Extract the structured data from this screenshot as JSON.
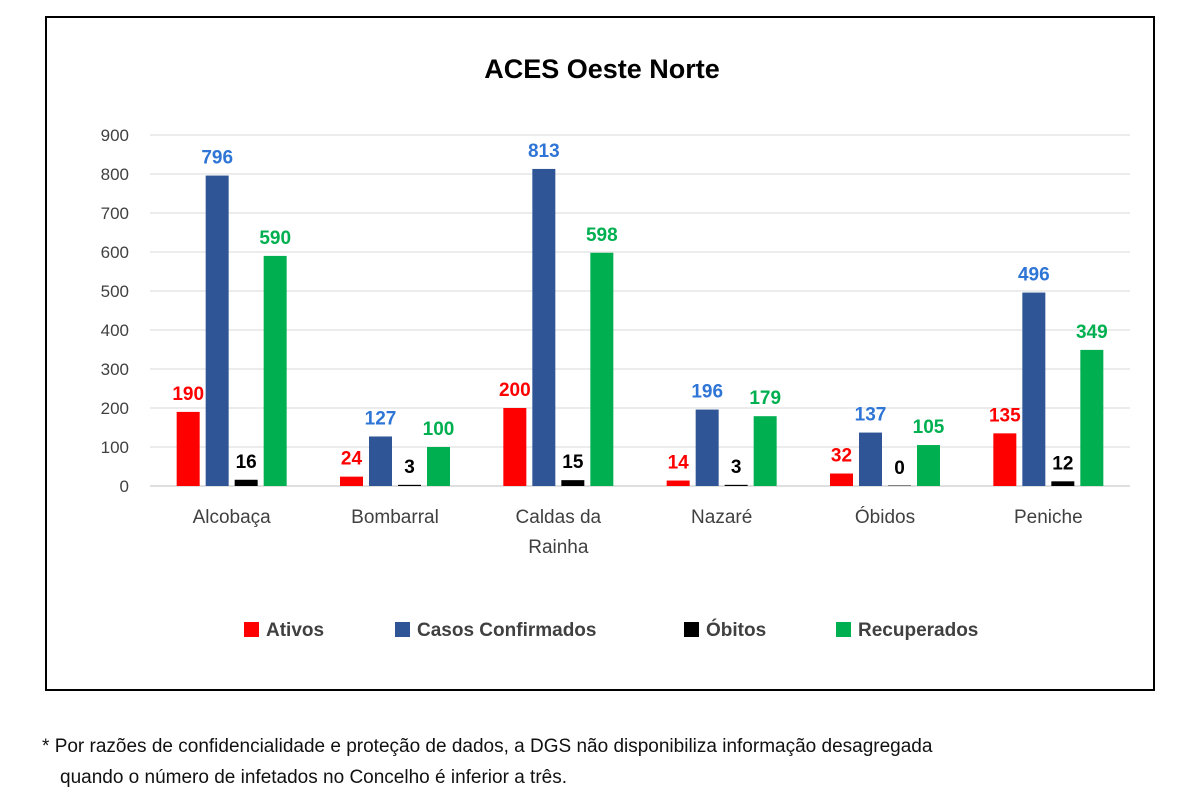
{
  "chart_data": {
    "type": "bar",
    "title": "ACES Oeste Norte",
    "categories": [
      "Alcobaça",
      "Bombarral",
      "Caldas da Rainha",
      "Nazaré",
      "Óbidos",
      "Peniche"
    ],
    "category_lines": [
      [
        "Alcobaça"
      ],
      [
        "Bombarral"
      ],
      [
        "Caldas da",
        "Rainha"
      ],
      [
        "Nazaré"
      ],
      [
        "Óbidos"
      ],
      [
        "Peniche"
      ]
    ],
    "series": [
      {
        "name": "Ativos",
        "color": "#ff0000",
        "label_color": "#ff0000",
        "values": [
          190,
          24,
          200,
          14,
          32,
          135
        ]
      },
      {
        "name": "Casos Confirmados",
        "color": "#2f5597",
        "label_color": "#2e75d6",
        "values": [
          796,
          127,
          813,
          196,
          137,
          496
        ]
      },
      {
        "name": "Óbitos",
        "color": "#000000",
        "label_color": "#000000",
        "values": [
          16,
          3,
          15,
          3,
          0,
          12
        ]
      },
      {
        "name": "Recuperados",
        "color": "#00b050",
        "label_color": "#00b050",
        "values": [
          590,
          100,
          598,
          179,
          105,
          349
        ]
      }
    ],
    "y_ticks": [
      0,
      100,
      200,
      300,
      400,
      500,
      600,
      700,
      800,
      900
    ],
    "ylim": [
      0,
      900
    ],
    "grid": true,
    "legend_position": "bottom"
  },
  "footnote": {
    "marker": "*",
    "line1": "Por razões de confidencialidade e proteção de dados, a DGS não disponibiliza informação desagregada",
    "line2": "quando o número de infetados no Concelho é inferior a três."
  }
}
